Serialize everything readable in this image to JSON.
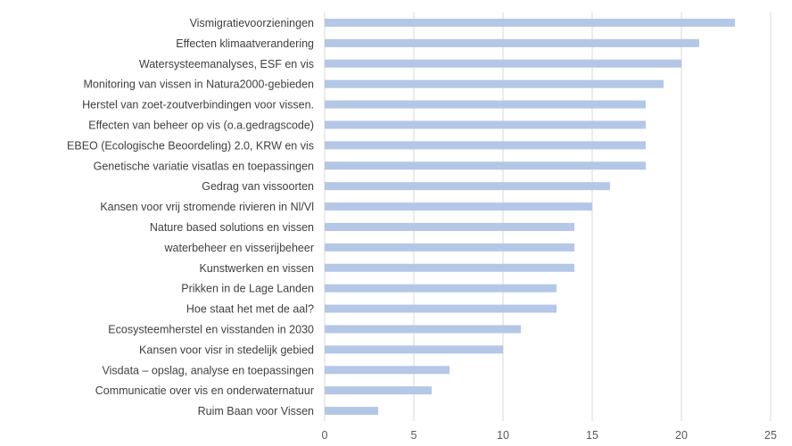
{
  "chart_data": {
    "type": "bar",
    "orientation": "horizontal",
    "title": "",
    "xlabel": "",
    "ylabel": "",
    "xlim": [
      0,
      25
    ],
    "xticks": [
      0,
      5,
      10,
      15,
      20,
      25
    ],
    "grid": true,
    "bar_color": "#b4c7e7",
    "categories": [
      "Vismigratievoorzieningen",
      "Effecten klimaatverandering ",
      "Watersysteemanalyses, ESF en vis",
      "Monitoring van vissen in Natura2000-gebieden",
      "Herstel van zoet-zoutverbindingen voor vissen.",
      "Effecten van beheer op vis (o.a.gedragscode)",
      "EBEO (Ecologische Beoordeling) 2.0, KRW en vis",
      "Genetische variatie visatlas en toepassingen",
      "Gedrag van vissoorten",
      "Kansen voor vrij stromende rivieren in Nl/Vl",
      "Nature based solutions en vissen",
      "waterbeheer en visserijbeheer ",
      "Kunstwerken en vissen ",
      "Prikken in de Lage Landen",
      "Hoe staat het met de aal?",
      "Ecosysteemherstel en visstanden in 2030",
      "Kansen voor visr in stedelijk gebied",
      "Visdata – opslag, analyse en toepassingen",
      "Communicatie over vis en onderwaternatuur",
      "Ruim Baan voor Vissen"
    ],
    "values": [
      23,
      21,
      20,
      19,
      18,
      18,
      18,
      18,
      16,
      15,
      14,
      14,
      14,
      13,
      13,
      11,
      10,
      7,
      6,
      3
    ]
  }
}
